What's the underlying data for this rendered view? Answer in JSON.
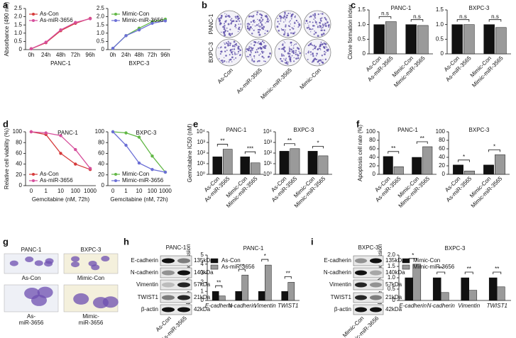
{
  "panel_labels": [
    "a",
    "b",
    "c",
    "d",
    "e",
    "f",
    "g",
    "h",
    "i"
  ],
  "chart_data": [
    {
      "type": "line",
      "xlabel": "PANC-1",
      "ylabel": "Absorbance (490 nm)",
      "categories": [
        "0h",
        "24h",
        "48h",
        "72h",
        "96h"
      ],
      "series": [
        {
          "name": "As-Con",
          "color": "#d63b3b",
          "values": [
            0.05,
            0.42,
            1.15,
            1.6,
            1.9
          ]
        },
        {
          "name": "As-miR-3656",
          "color": "#d64f9c",
          "values": [
            0.05,
            0.45,
            1.2,
            1.65,
            1.88
          ]
        }
      ],
      "ylim": [
        0,
        2.5
      ],
      "yticks": [
        0,
        0.5,
        {
          "value": 1,
          "label": "1.0"
        },
        1.5,
        {
          "value": 2,
          "label": "2.0"
        },
        2.5
      ],
      "legend": "upper left"
    },
    {
      "type": "line",
      "xlabel": "BXPC-3",
      "categories": [
        "0h",
        "24h",
        "48h",
        "72h",
        "96h"
      ],
      "series": [
        {
          "name": "Mimic-Con",
          "color": "#62b846",
          "values": [
            0.08,
            0.85,
            1.3,
            1.7,
            1.85
          ]
        },
        {
          "name": "Mimic-miR-3656",
          "color": "#6b6fd6",
          "values": [
            0.08,
            0.85,
            1.2,
            1.6,
            1.75
          ]
        }
      ],
      "ylim": [
        0,
        2.5
      ],
      "yticks": [
        0,
        0.5,
        {
          "value": 1,
          "label": "1.0"
        },
        1.5,
        {
          "value": 2,
          "label": "2.0"
        },
        2.5
      ],
      "legend": "upper left"
    },
    {
      "type": "bar",
      "title": "PANC-1",
      "ylabel": "Clone formation index",
      "categories": [
        "As-Con",
        "As-miR-3565",
        "Mimic-Con",
        "Mimic-miR-3565"
      ],
      "values": [
        1.0,
        1.1,
        1.0,
        0.97
      ],
      "colors": [
        "#111111",
        "#9a9a9a",
        "#111111",
        "#9a9a9a"
      ],
      "ylim": [
        0,
        1.5
      ],
      "yticks": [
        0,
        0.5,
        {
          "value": 1,
          "label": "1.0"
        },
        1.5
      ],
      "annotations": [
        "n.s",
        "n.s"
      ]
    },
    {
      "type": "bar",
      "title": "BXPC-3",
      "categories": [
        "As-Con",
        "As-miR-3565",
        "Mimic-Con",
        "Mimic-miR-3565"
      ],
      "values": [
        1.0,
        1.0,
        1.0,
        0.9
      ],
      "colors": [
        "#111111",
        "#9a9a9a",
        "#111111",
        "#9a9a9a"
      ],
      "ylim": [
        0,
        1.5
      ],
      "yticks": [
        0,
        0.5,
        {
          "value": 1,
          "label": "1.0"
        },
        1.5
      ],
      "annotations": [
        "n.s",
        "n.s"
      ]
    },
    {
      "type": "line",
      "title": "PANC-1",
      "xlabel": "Gemcitabine (nM, 72h)",
      "ylabel": "Relative cell viability (%)",
      "categories": [
        "0",
        "1",
        "10",
        "100",
        "1000"
      ],
      "series": [
        {
          "name": "As-Con",
          "color": "#d63b3b",
          "values": [
            100,
            95,
            60,
            40,
            30
          ]
        },
        {
          "name": "As-miR-3656",
          "color": "#d64f9c",
          "values": [
            100,
            98,
            93,
            67,
            32
          ]
        }
      ],
      "ylim": [
        0,
        100
      ],
      "yticks": [
        0,
        20,
        40,
        60,
        80,
        100
      ],
      "legend": "lower left"
    },
    {
      "type": "line",
      "title": "BXPC-3",
      "xlabel": "Gemcitabine (nM, 72h)",
      "categories": [
        "0",
        "1",
        "10",
        "100",
        "1000"
      ],
      "series": [
        {
          "name": "Mimic-Con",
          "color": "#62b846",
          "values": [
            100,
            98,
            90,
            55,
            25
          ]
        },
        {
          "name": "Mimic-miR-3656",
          "color": "#6b6fd6",
          "values": [
            100,
            75,
            42,
            30,
            25
          ]
        }
      ],
      "ylim": [
        0,
        100
      ],
      "yticks": [
        0,
        20,
        40,
        60,
        80,
        100
      ],
      "legend": "lower left"
    },
    {
      "type": "bar",
      "title": "PANC-1",
      "ylabel": "Gemcitabine IC50 (nM)",
      "log_scale": true,
      "categories": [
        "As-Con",
        "As-miR-3565",
        "Mimic-Con",
        "Mimic-miR-3565"
      ],
      "values": [
        45,
        230,
        45,
        12
      ],
      "colors": [
        "#111111",
        "#9a9a9a",
        "#111111",
        "#9a9a9a"
      ],
      "ylim": [
        1,
        10000
      ],
      "yticks": [
        {
          "value": 1,
          "label": "10⁰"
        },
        {
          "value": 10,
          "label": "10¹"
        },
        {
          "value": 100,
          "label": "10²"
        },
        {
          "value": 1000,
          "label": "10³"
        },
        {
          "value": 10000,
          "label": "10⁴"
        }
      ],
      "annotations": [
        "**",
        "***"
      ]
    },
    {
      "type": "bar",
      "title": "BXPC-3",
      "log_scale": true,
      "categories": [
        "As-Con",
        "As-miR-3565",
        "Mimic-Con",
        "Mimic-miR-3565"
      ],
      "values": [
        150,
        260,
        150,
        55
      ],
      "colors": [
        "#111111",
        "#9a9a9a",
        "#111111",
        "#9a9a9a"
      ],
      "ylim": [
        1,
        10000
      ],
      "yticks": [
        {
          "value": 1,
          "label": "10⁰"
        },
        {
          "value": 10,
          "label": "10¹"
        },
        {
          "value": 100,
          "label": "10²"
        },
        {
          "value": 1000,
          "label": "10³"
        },
        {
          "value": 10000,
          "label": "10⁴"
        }
      ],
      "annotations": [
        "**",
        "*"
      ]
    },
    {
      "type": "bar",
      "title": "PANC-1",
      "ylabel": "Apoptosis cell rate (%)",
      "categories": [
        "As-Con",
        "As-miR-3565",
        "Mimic-Con",
        "Mimic-miR-3565"
      ],
      "values": [
        42,
        18,
        40,
        65
      ],
      "colors": [
        "#111111",
        "#9a9a9a",
        "#111111",
        "#9a9a9a"
      ],
      "ylim": [
        0,
        100
      ],
      "yticks": [
        0,
        20,
        40,
        60,
        80,
        100
      ],
      "annotations": [
        "**",
        "**"
      ]
    },
    {
      "type": "bar",
      "title": "BXPC-3",
      "categories": [
        "As-Con",
        "As-miR-3565",
        "Mimic-Con",
        "Mimic-miR-3565"
      ],
      "values": [
        22,
        8,
        22,
        46
      ],
      "colors": [
        "#111111",
        "#9a9a9a",
        "#111111",
        "#9a9a9a"
      ],
      "ylim": [
        0,
        100
      ],
      "yticks": [
        0,
        20,
        40,
        60,
        80,
        100
      ],
      "annotations": [
        "*",
        "*"
      ]
    },
    {
      "type": "bar",
      "title": "PANC-1",
      "ylabel": "Relative mRNA expression",
      "categories": [
        "E-cadherin",
        "N-cadherin",
        "Vimentin",
        "TWIST1"
      ],
      "series": [
        {
          "name": "As-Con",
          "color": "#111111",
          "values": [
            1,
            1,
            1,
            1
          ]
        },
        {
          "name": "As-miR-3656",
          "color": "#9a9a9a",
          "values": [
            0.5,
            2.8,
            3.9,
            2.0
          ]
        }
      ],
      "ylim": [
        0,
        5
      ],
      "yticks": [
        0,
        1,
        2,
        3,
        4,
        5
      ],
      "annotations": [
        "**",
        "**",
        "*",
        "**"
      ],
      "legend": "upper left"
    },
    {
      "type": "bar",
      "title": "BXPC-3",
      "ylabel": "Relative mRNA expression",
      "categories": [
        "E-cadherin",
        "N-cadherin",
        "Vimentin",
        "TWIST1"
      ],
      "series": [
        {
          "name": "Mimic-Con",
          "color": "#111111",
          "values": [
            1,
            1,
            1,
            1
          ]
        },
        {
          "name": "Mimic-miR-3656",
          "color": "#9a9a9a",
          "values": [
            1.6,
            0.35,
            0.45,
            0.6
          ]
        }
      ],
      "ylim": [
        0,
        2
      ],
      "yticks": [
        0,
        0.5,
        {
          "value": 1,
          "label": "1.0"
        },
        1.5,
        {
          "value": 2,
          "label": "2.0"
        }
      ],
      "annotations": [
        "*",
        "**",
        "**",
        "**"
      ],
      "legend": "upper left"
    }
  ],
  "colony_plates": {
    "row_labels": [
      "PANC-1",
      "BXPC-3"
    ],
    "column_labels": [
      "As-Con",
      "As-miR-3565",
      "Mimic-miR-3565",
      "Mimic-Con"
    ]
  },
  "cell_images": {
    "column_labels": [
      "PANC-1",
      "BXPC-3"
    ],
    "image_labels": [
      [
        "As-Con"
      ],
      [
        "Mimic-Con"
      ],
      [
        "As-",
        "miR-3656"
      ],
      [
        "Mimic-",
        "miR-3656"
      ]
    ]
  },
  "blots": [
    {
      "title": "PANC-1",
      "proteins": [
        "E-cadherin",
        "N-cadherin",
        "Vimentin",
        "TWIST1",
        "β-actin"
      ],
      "sizes": [
        "135kDa",
        "140kDa",
        "57kDa",
        "21kDa",
        "42kDa"
      ],
      "lanes": [
        "As-Con",
        "As-miR-3565"
      ]
    },
    {
      "title": "BXPC-3",
      "proteins": [
        "E-cadherin",
        "N-cadherin",
        "Vimentin",
        "TWIST1",
        "β-actin"
      ],
      "sizes": [
        "135kDa",
        "140kDa",
        "57kDa",
        "21kDa",
        "42kDa"
      ],
      "lanes": [
        "Mimic-Con",
        "Mimic-miR-3656"
      ]
    }
  ]
}
